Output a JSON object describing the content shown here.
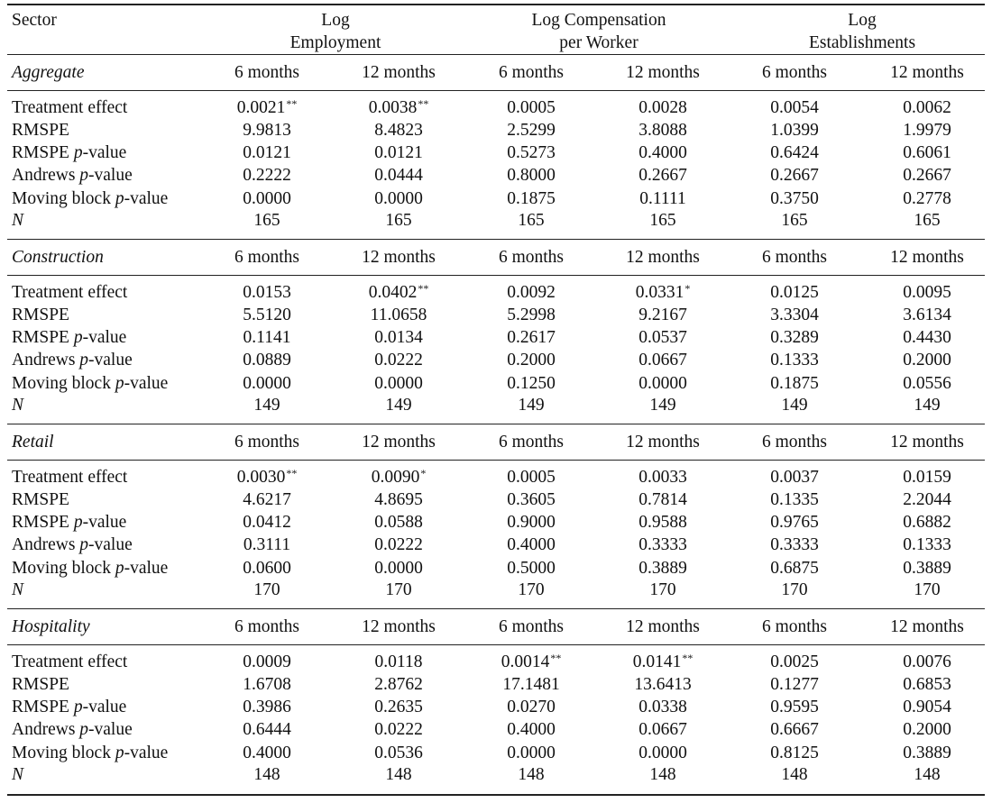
{
  "header": {
    "sector": "Sector",
    "groups": [
      {
        "line1": "Log",
        "line2": "Employment"
      },
      {
        "line1": "Log Compensation",
        "line2": "per Worker"
      },
      {
        "line1": "Log",
        "line2": "Establishments"
      }
    ]
  },
  "row_labels": [
    {
      "pre": "Treatment effect",
      "p": "",
      "post": ""
    },
    {
      "pre": "RMSPE",
      "p": "",
      "post": ""
    },
    {
      "pre": "RMSPE ",
      "p": "p",
      "post": "-value"
    },
    {
      "pre": "Andrews ",
      "p": "p",
      "post": "-value"
    },
    {
      "pre": "Moving block ",
      "p": "p",
      "post": "-value"
    },
    {
      "pre": "",
      "p": "N",
      "post": ""
    }
  ],
  "sections": [
    {
      "name": "Aggregate",
      "columns": [
        "6 months",
        "12 months",
        "6 months",
        "12 months",
        "6 months",
        "12 months"
      ],
      "rows": [
        [
          {
            "v": "0.0021",
            "s": "**"
          },
          {
            "v": "0.0038",
            "s": "**"
          },
          {
            "v": "0.0005",
            "s": ""
          },
          {
            "v": "0.0028",
            "s": ""
          },
          {
            "v": "0.0054",
            "s": ""
          },
          {
            "v": "0.0062",
            "s": ""
          }
        ],
        [
          {
            "v": "9.9813",
            "s": ""
          },
          {
            "v": "8.4823",
            "s": ""
          },
          {
            "v": "2.5299",
            "s": ""
          },
          {
            "v": "3.8088",
            "s": ""
          },
          {
            "v": "1.0399",
            "s": ""
          },
          {
            "v": "1.9979",
            "s": ""
          }
        ],
        [
          {
            "v": "0.0121",
            "s": ""
          },
          {
            "v": "0.0121",
            "s": ""
          },
          {
            "v": "0.5273",
            "s": ""
          },
          {
            "v": "0.4000",
            "s": ""
          },
          {
            "v": "0.6424",
            "s": ""
          },
          {
            "v": "0.6061",
            "s": ""
          }
        ],
        [
          {
            "v": "0.2222",
            "s": ""
          },
          {
            "v": "0.0444",
            "s": ""
          },
          {
            "v": "0.8000",
            "s": ""
          },
          {
            "v": "0.2667",
            "s": ""
          },
          {
            "v": "0.2667",
            "s": ""
          },
          {
            "v": "0.2667",
            "s": ""
          }
        ],
        [
          {
            "v": "0.0000",
            "s": ""
          },
          {
            "v": "0.0000",
            "s": ""
          },
          {
            "v": "0.1875",
            "s": ""
          },
          {
            "v": "0.1111",
            "s": ""
          },
          {
            "v": "0.3750",
            "s": ""
          },
          {
            "v": "0.2778",
            "s": ""
          }
        ],
        [
          {
            "v": "165",
            "s": ""
          },
          {
            "v": "165",
            "s": ""
          },
          {
            "v": "165",
            "s": ""
          },
          {
            "v": "165",
            "s": ""
          },
          {
            "v": "165",
            "s": ""
          },
          {
            "v": "165",
            "s": ""
          }
        ]
      ]
    },
    {
      "name": "Construction",
      "columns": [
        "6 months",
        "12 months",
        "6 months",
        "12 months",
        "6 months",
        "12 months"
      ],
      "rows": [
        [
          {
            "v": "0.0153",
            "s": ""
          },
          {
            "v": "0.0402",
            "s": "**"
          },
          {
            "v": "0.0092",
            "s": ""
          },
          {
            "v": "0.0331",
            "s": "*"
          },
          {
            "v": "0.0125",
            "s": ""
          },
          {
            "v": "0.0095",
            "s": ""
          }
        ],
        [
          {
            "v": "5.5120",
            "s": ""
          },
          {
            "v": "11.0658",
            "s": ""
          },
          {
            "v": "5.2998",
            "s": ""
          },
          {
            "v": "9.2167",
            "s": ""
          },
          {
            "v": "3.3304",
            "s": ""
          },
          {
            "v": "3.6134",
            "s": ""
          }
        ],
        [
          {
            "v": "0.1141",
            "s": ""
          },
          {
            "v": "0.0134",
            "s": ""
          },
          {
            "v": "0.2617",
            "s": ""
          },
          {
            "v": "0.0537",
            "s": ""
          },
          {
            "v": "0.3289",
            "s": ""
          },
          {
            "v": "0.4430",
            "s": ""
          }
        ],
        [
          {
            "v": "0.0889",
            "s": ""
          },
          {
            "v": "0.0222",
            "s": ""
          },
          {
            "v": "0.2000",
            "s": ""
          },
          {
            "v": "0.0667",
            "s": ""
          },
          {
            "v": "0.1333",
            "s": ""
          },
          {
            "v": "0.2000",
            "s": ""
          }
        ],
        [
          {
            "v": "0.0000",
            "s": ""
          },
          {
            "v": "0.0000",
            "s": ""
          },
          {
            "v": "0.1250",
            "s": ""
          },
          {
            "v": "0.0000",
            "s": ""
          },
          {
            "v": "0.1875",
            "s": ""
          },
          {
            "v": "0.0556",
            "s": ""
          }
        ],
        [
          {
            "v": "149",
            "s": ""
          },
          {
            "v": "149",
            "s": ""
          },
          {
            "v": "149",
            "s": ""
          },
          {
            "v": "149",
            "s": ""
          },
          {
            "v": "149",
            "s": ""
          },
          {
            "v": "149",
            "s": ""
          }
        ]
      ]
    },
    {
      "name": "Retail",
      "columns": [
        "6 months",
        "12 months",
        "6 months",
        "12 months",
        "6 months",
        "12 months"
      ],
      "rows": [
        [
          {
            "v": "0.0030",
            "s": "**"
          },
          {
            "v": "0.0090",
            "s": "*"
          },
          {
            "v": "0.0005",
            "s": ""
          },
          {
            "v": "0.0033",
            "s": ""
          },
          {
            "v": "0.0037",
            "s": ""
          },
          {
            "v": "0.0159",
            "s": ""
          }
        ],
        [
          {
            "v": "4.6217",
            "s": ""
          },
          {
            "v": "4.8695",
            "s": ""
          },
          {
            "v": "0.3605",
            "s": ""
          },
          {
            "v": "0.7814",
            "s": ""
          },
          {
            "v": "0.1335",
            "s": ""
          },
          {
            "v": "2.2044",
            "s": ""
          }
        ],
        [
          {
            "v": "0.0412",
            "s": ""
          },
          {
            "v": "0.0588",
            "s": ""
          },
          {
            "v": "0.9000",
            "s": ""
          },
          {
            "v": "0.9588",
            "s": ""
          },
          {
            "v": "0.9765",
            "s": ""
          },
          {
            "v": "0.6882",
            "s": ""
          }
        ],
        [
          {
            "v": "0.3111",
            "s": ""
          },
          {
            "v": "0.0222",
            "s": ""
          },
          {
            "v": "0.4000",
            "s": ""
          },
          {
            "v": "0.3333",
            "s": ""
          },
          {
            "v": "0.3333",
            "s": ""
          },
          {
            "v": "0.1333",
            "s": ""
          }
        ],
        [
          {
            "v": "0.0600",
            "s": ""
          },
          {
            "v": "0.0000",
            "s": ""
          },
          {
            "v": "0.5000",
            "s": ""
          },
          {
            "v": "0.3889",
            "s": ""
          },
          {
            "v": "0.6875",
            "s": ""
          },
          {
            "v": "0.3889",
            "s": ""
          }
        ],
        [
          {
            "v": "170",
            "s": ""
          },
          {
            "v": "170",
            "s": ""
          },
          {
            "v": "170",
            "s": ""
          },
          {
            "v": "170",
            "s": ""
          },
          {
            "v": "170",
            "s": ""
          },
          {
            "v": "170",
            "s": ""
          }
        ]
      ]
    },
    {
      "name": "Hospitality",
      "columns": [
        "6 months",
        "12 months",
        "6 months",
        "12 months",
        "6 months",
        "12 months"
      ],
      "rows": [
        [
          {
            "v": "0.0009",
            "s": ""
          },
          {
            "v": "0.0118",
            "s": ""
          },
          {
            "v": "0.0014",
            "s": "**"
          },
          {
            "v": "0.0141",
            "s": "**"
          },
          {
            "v": "0.0025",
            "s": ""
          },
          {
            "v": "0.0076",
            "s": ""
          }
        ],
        [
          {
            "v": "1.6708",
            "s": ""
          },
          {
            "v": "2.8762",
            "s": ""
          },
          {
            "v": "17.1481",
            "s": ""
          },
          {
            "v": "13.6413",
            "s": ""
          },
          {
            "v": "0.1277",
            "s": ""
          },
          {
            "v": "0.6853",
            "s": ""
          }
        ],
        [
          {
            "v": "0.3986",
            "s": ""
          },
          {
            "v": "0.2635",
            "s": ""
          },
          {
            "v": "0.0270",
            "s": ""
          },
          {
            "v": "0.0338",
            "s": ""
          },
          {
            "v": "0.9595",
            "s": ""
          },
          {
            "v": "0.9054",
            "s": ""
          }
        ],
        [
          {
            "v": "0.6444",
            "s": ""
          },
          {
            "v": "0.0222",
            "s": ""
          },
          {
            "v": "0.4000",
            "s": ""
          },
          {
            "v": "0.0667",
            "s": ""
          },
          {
            "v": "0.6667",
            "s": ""
          },
          {
            "v": "0.2000",
            "s": ""
          }
        ],
        [
          {
            "v": "0.4000",
            "s": ""
          },
          {
            "v": "0.0536",
            "s": ""
          },
          {
            "v": "0.0000",
            "s": ""
          },
          {
            "v": "0.0000",
            "s": ""
          },
          {
            "v": "0.8125",
            "s": ""
          },
          {
            "v": "0.3889",
            "s": ""
          }
        ],
        [
          {
            "v": "148",
            "s": ""
          },
          {
            "v": "148",
            "s": ""
          },
          {
            "v": "148",
            "s": ""
          },
          {
            "v": "148",
            "s": ""
          },
          {
            "v": "148",
            "s": ""
          },
          {
            "v": "148",
            "s": ""
          }
        ]
      ]
    }
  ]
}
